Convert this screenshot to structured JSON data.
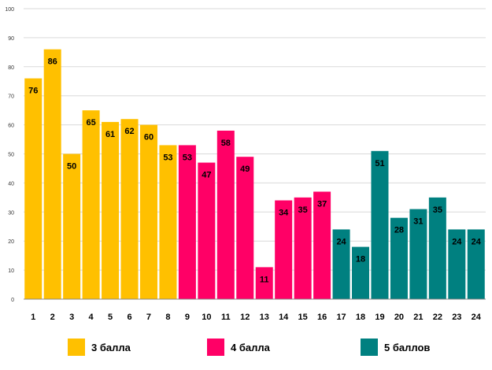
{
  "chart_data": {
    "type": "bar",
    "categories": [
      "1",
      "2",
      "3",
      "4",
      "5",
      "6",
      "7",
      "8",
      "9",
      "10",
      "11",
      "12",
      "13",
      "14",
      "15",
      "16",
      "17",
      "18",
      "19",
      "20",
      "21",
      "22",
      "23",
      "24"
    ],
    "values": [
      76,
      86,
      50,
      65,
      61,
      62,
      60,
      53,
      53,
      47,
      58,
      49,
      11,
      34,
      35,
      37,
      24,
      18,
      51,
      28,
      31,
      35,
      24,
      24
    ],
    "groups": [
      0,
      0,
      0,
      0,
      0,
      0,
      0,
      0,
      1,
      1,
      1,
      1,
      1,
      1,
      1,
      1,
      2,
      2,
      2,
      2,
      2,
      2,
      2,
      2
    ],
    "series": [
      {
        "name": "3 балла",
        "color": "#FFC000"
      },
      {
        "name": "4 балла",
        "color": "#FF0066"
      },
      {
        "name": "5 баллов",
        "color": "#008080"
      }
    ],
    "ylim": [
      0,
      100
    ],
    "yticks": [
      0,
      10,
      20,
      30,
      40,
      50,
      60,
      70,
      80,
      90,
      100
    ],
    "grid": true,
    "data_labels": true,
    "legend_position": "bottom"
  }
}
